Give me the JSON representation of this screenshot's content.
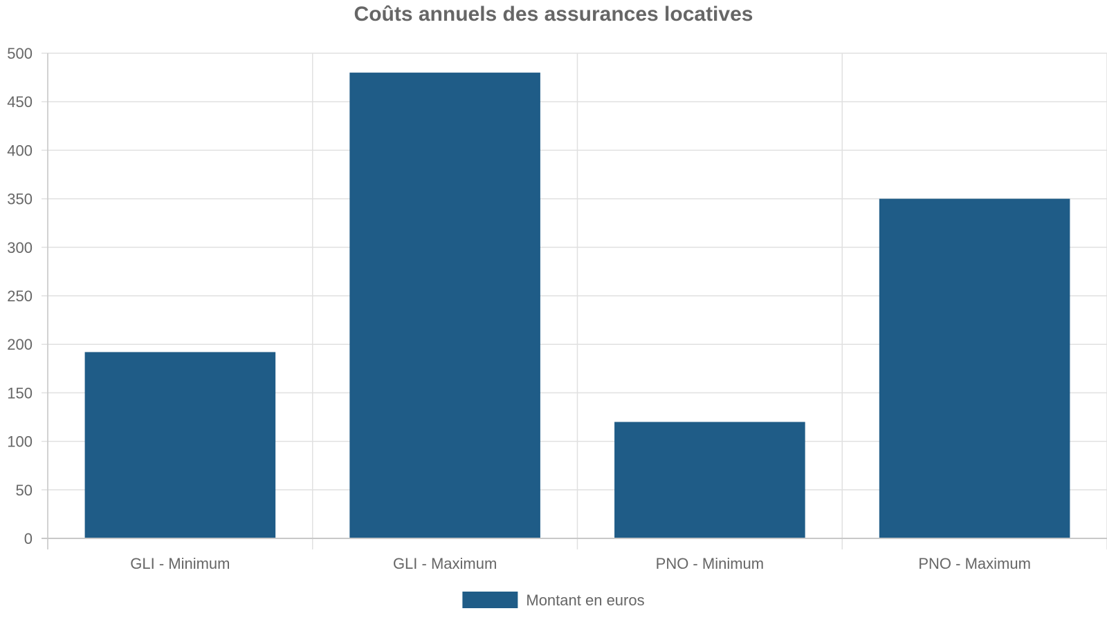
{
  "chart_data": {
    "type": "bar",
    "title": "Coûts annuels des assurances locatives",
    "xlabel": "",
    "ylabel": "",
    "categories": [
      "GLI - Minimum",
      "GLI - Maximum",
      "PNO - Minimum",
      "PNO - Maximum"
    ],
    "series": [
      {
        "name": "Montant en euros",
        "values": [
          192,
          480,
          120,
          350
        ],
        "color": "#1f5c87"
      }
    ],
    "ylim": [
      0,
      500
    ],
    "y_ticks": [
      0,
      50,
      100,
      150,
      200,
      250,
      300,
      350,
      400,
      450,
      500
    ],
    "grid": true,
    "legend_position": "bottom-center"
  }
}
